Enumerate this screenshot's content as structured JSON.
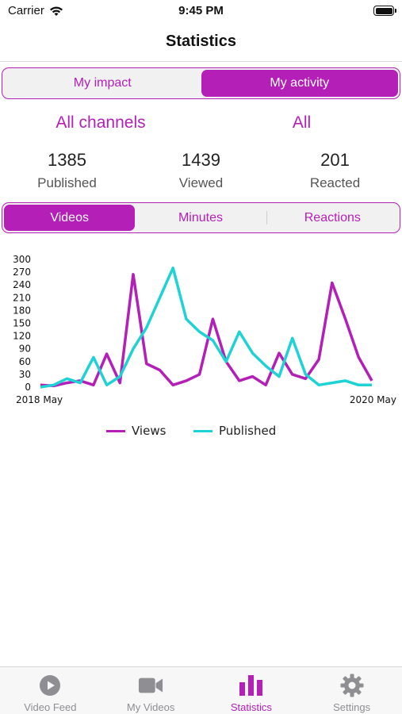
{
  "status_bar": {
    "carrier": "Carrier",
    "time": "9:45 PM"
  },
  "header": {
    "title": "Statistics"
  },
  "scope_tabs": [
    {
      "label": "My impact",
      "active": false
    },
    {
      "label": "My activity",
      "active": true
    }
  ],
  "filters": {
    "channel": "All channels",
    "type": "All"
  },
  "stats": [
    {
      "value": "1385",
      "label": "Published"
    },
    {
      "value": "1439",
      "label": "Viewed"
    },
    {
      "value": "201",
      "label": "Reacted"
    }
  ],
  "metric_tabs": [
    {
      "label": "Videos",
      "active": true
    },
    {
      "label": "Minutes",
      "active": false
    },
    {
      "label": "Reactions",
      "active": false
    }
  ],
  "chart_data": {
    "type": "line",
    "x_start_label": "2018 May",
    "x_end_label": "2020 May",
    "ylim": [
      0,
      300
    ],
    "yticks": [
      "0",
      "30",
      "60",
      "90",
      "120",
      "150",
      "180",
      "210",
      "240",
      "270",
      "300"
    ],
    "legend_position": "bottom",
    "series": [
      {
        "name": "Views",
        "color": "#b31fb7",
        "values": [
          5,
          3,
          10,
          15,
          5,
          78,
          10,
          265,
          55,
          40,
          5,
          15,
          30,
          160,
          60,
          15,
          25,
          5,
          80,
          30,
          20,
          65,
          245,
          160,
          70,
          15
        ]
      },
      {
        "name": "Published",
        "color": "#1fd2d6",
        "values": [
          0,
          5,
          20,
          10,
          70,
          5,
          25,
          90,
          140,
          210,
          280,
          160,
          130,
          110,
          60,
          130,
          80,
          50,
          25,
          115,
          30,
          5,
          10,
          15,
          5,
          5
        ]
      }
    ]
  },
  "tab_bar": [
    {
      "label": "Video Feed",
      "icon": "play-circle-icon",
      "active": false
    },
    {
      "label": "My Videos",
      "icon": "video-camera-icon",
      "active": false
    },
    {
      "label": "Statistics",
      "icon": "bar-chart-icon",
      "active": true
    },
    {
      "label": "Settings",
      "icon": "gear-icon",
      "active": false
    }
  ]
}
